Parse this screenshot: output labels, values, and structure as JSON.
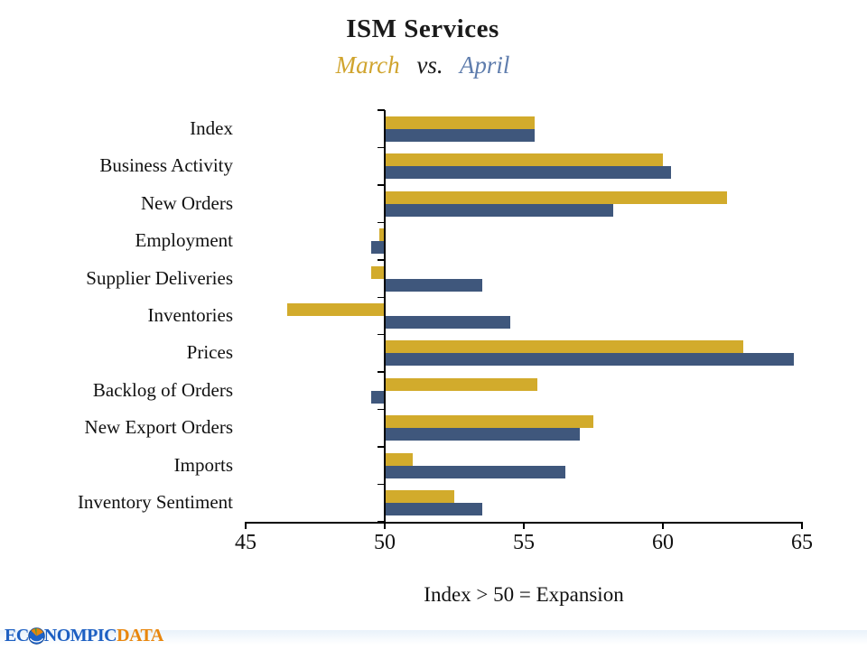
{
  "header": {
    "title": "ISM Services",
    "subtitle": {
      "march": "March",
      "vs": "vs.",
      "april": "April"
    }
  },
  "chart_data": {
    "type": "bar",
    "orientation": "horizontal",
    "title": "ISM Services",
    "subtitle": "March vs. April",
    "baseline": 50,
    "xlim": [
      45,
      65
    ],
    "xticks": [
      45,
      50,
      55,
      60,
      65
    ],
    "xlabel": "Index > 50 = Expansion",
    "grid": false,
    "legend": "encoded-in-subtitle-colors",
    "categories": [
      "Index",
      "Business Activity",
      "New Orders",
      "Employment",
      "Supplier Deliveries",
      "Inventories",
      "Prices",
      "Backlog of Orders",
      "New Export Orders",
      "Imports",
      "Inventory Sentiment"
    ],
    "series": [
      {
        "name": "March",
        "color": "#D2AB2C",
        "values": [
          55.4,
          60.0,
          62.3,
          49.8,
          49.5,
          46.5,
          62.9,
          55.5,
          57.5,
          51.0,
          52.5
        ]
      },
      {
        "name": "April",
        "color": "#3F577C",
        "values": [
          55.4,
          60.3,
          58.2,
          49.5,
          53.5,
          54.5,
          64.7,
          49.5,
          57.0,
          56.5,
          53.5
        ]
      }
    ]
  },
  "colors": {
    "title": "#1A1A1A",
    "march_text": "#D0A42E",
    "vs_text": "#1A1A1A",
    "april_text": "#5F7DAD",
    "axis": "#000000",
    "logo_blue": "#1C5FC2",
    "logo_orange": "#E8860D"
  },
  "footer": {
    "logo": {
      "part1": "EC",
      "icon": "globe-icon",
      "part2": "NOMPIC",
      "part3": "DATA"
    }
  }
}
